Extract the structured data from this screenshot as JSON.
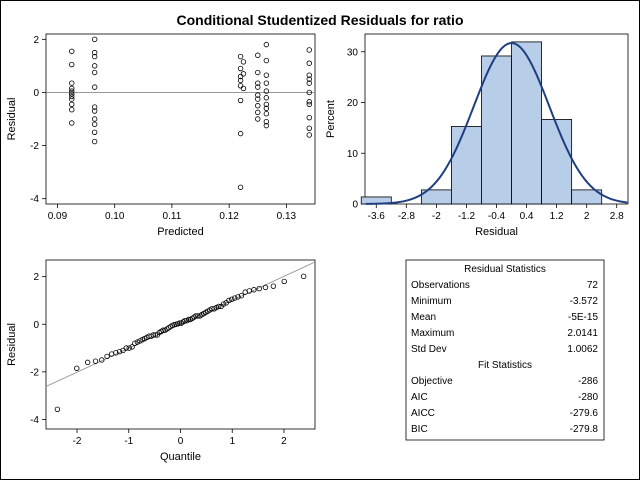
{
  "title": "Conditional Studentized Residuals for ratio",
  "colors": {
    "bar_fill": "#b7cde8",
    "curve": "#1f3f80",
    "reference_line": "#8a8a8a"
  },
  "chart_data": [
    {
      "type": "scatter",
      "panel": "top-left",
      "xlabel": "Predicted",
      "ylabel": "Residual",
      "xlim": [
        0.088,
        0.135
      ],
      "ylim": [
        -4.2,
        2.2
      ],
      "xticks": [
        0.09,
        0.1,
        0.11,
        0.12,
        0.13
      ],
      "xtick_labels": [
        "0.09",
        "0.10",
        "0.11",
        "0.12",
        "0.13"
      ],
      "yticks": [
        -4,
        -2,
        0,
        2
      ],
      "ytick_labels": [
        "-4",
        "-2",
        "0",
        "2"
      ],
      "reference_line_y": 0,
      "points": [
        [
          0.0925,
          1.55
        ],
        [
          0.0925,
          1.05
        ],
        [
          0.0925,
          0.35
        ],
        [
          0.0925,
          0.15
        ],
        [
          0.0925,
          0.05
        ],
        [
          0.0925,
          -0.05
        ],
        [
          0.0925,
          -0.15
        ],
        [
          0.0925,
          -0.25
        ],
        [
          0.0925,
          -0.45
        ],
        [
          0.0925,
          -0.65
        ],
        [
          0.0925,
          -1.15
        ],
        [
          0.0965,
          2.0
        ],
        [
          0.0965,
          1.5
        ],
        [
          0.0965,
          1.35
        ],
        [
          0.0965,
          1.0
        ],
        [
          0.0965,
          0.75
        ],
        [
          0.0965,
          0.2
        ],
        [
          0.0965,
          -0.55
        ],
        [
          0.0965,
          -0.7
        ],
        [
          0.0965,
          -1.0
        ],
        [
          0.0965,
          -1.2
        ],
        [
          0.0965,
          -1.5
        ],
        [
          0.0965,
          -1.85
        ],
        [
          0.122,
          1.35
        ],
        [
          0.122,
          0.9
        ],
        [
          0.122,
          0.6
        ],
        [
          0.122,
          0.45
        ],
        [
          0.122,
          0.25
        ],
        [
          0.122,
          -0.3
        ],
        [
          0.122,
          -1.55
        ],
        [
          0.122,
          -3.57
        ],
        [
          0.1225,
          1.15
        ],
        [
          0.1225,
          0.7
        ],
        [
          0.1225,
          0.15
        ],
        [
          0.125,
          1.4
        ],
        [
          0.125,
          0.75
        ],
        [
          0.125,
          0.35
        ],
        [
          0.125,
          0.2
        ],
        [
          0.125,
          -0.1
        ],
        [
          0.125,
          -0.25
        ],
        [
          0.125,
          -0.5
        ],
        [
          0.125,
          -0.75
        ],
        [
          0.125,
          -1.0
        ],
        [
          0.1265,
          1.8
        ],
        [
          0.1265,
          1.2
        ],
        [
          0.1265,
          0.65
        ],
        [
          0.1265,
          0.35
        ],
        [
          0.1265,
          0.05
        ],
        [
          0.1265,
          -0.2
        ],
        [
          0.1265,
          -0.45
        ],
        [
          0.1265,
          -0.6
        ],
        [
          0.1265,
          -0.8
        ],
        [
          0.1265,
          -1.1
        ],
        [
          0.1265,
          -1.25
        ],
        [
          0.134,
          1.6
        ],
        [
          0.134,
          1.1
        ],
        [
          0.134,
          0.65
        ],
        [
          0.134,
          0.5
        ],
        [
          0.134,
          0.35
        ],
        [
          0.134,
          0.0
        ],
        [
          0.134,
          -0.35
        ],
        [
          0.134,
          -0.45
        ],
        [
          0.134,
          -0.95
        ],
        [
          0.134,
          -1.35
        ],
        [
          0.134,
          -1.6
        ]
      ]
    },
    {
      "type": "bar",
      "panel": "top-right",
      "xlabel": "Residual",
      "ylabel": "Percent",
      "xlim": [
        -3.9,
        3.1
      ],
      "ylim": [
        0,
        33.5
      ],
      "xticks": [
        -3.6,
        -2.8,
        -2.0,
        -1.2,
        -0.4,
        0.4,
        1.2,
        2.0,
        2.8
      ],
      "xtick_labels": [
        "-3.6",
        "-2.8",
        "-2",
        "-1.2",
        "-0.4",
        "0.4",
        "1.2",
        "2",
        "2.8"
      ],
      "yticks": [
        0,
        10,
        20,
        30
      ],
      "ytick_labels": [
        "0",
        "10",
        "20",
        "30"
      ],
      "bin_width": 0.8,
      "bin_centers": [
        -3.6,
        -2.8,
        -2.0,
        -1.2,
        -0.4,
        0.4,
        1.2,
        2.0,
        2.8
      ],
      "values": [
        1.39,
        0,
        2.78,
        15.28,
        29.17,
        31.94,
        16.67,
        2.78,
        0
      ],
      "normal_curve": {
        "mean": 0,
        "sd": 1.0062,
        "scale_percent_per_bin": 80
      }
    },
    {
      "type": "scatter",
      "panel": "bottom-left",
      "xlabel": "Quantile",
      "ylabel": "Residual",
      "xlim": [
        -2.6,
        2.6
      ],
      "ylim": [
        -4.4,
        2.7
      ],
      "xticks": [
        -2,
        -1,
        0,
        1,
        2
      ],
      "xtick_labels": [
        "-2",
        "-1",
        "0",
        "1",
        "2"
      ],
      "yticks": [
        -4,
        -2,
        0,
        2
      ],
      "ytick_labels": [
        "-4",
        "-2",
        "0",
        "2"
      ],
      "reference_line": {
        "intercept": 0,
        "slope": 1.0062
      },
      "n_points": 72,
      "sorted_residuals": [
        -3.572,
        -1.85,
        -1.6,
        -1.55,
        -1.5,
        -1.35,
        -1.25,
        -1.2,
        -1.15,
        -1.1,
        -1.0,
        -1.0,
        -0.95,
        -0.8,
        -0.75,
        -0.7,
        -0.65,
        -0.6,
        -0.55,
        -0.5,
        -0.5,
        -0.45,
        -0.45,
        -0.45,
        -0.35,
        -0.3,
        -0.25,
        -0.25,
        -0.2,
        -0.15,
        -0.1,
        -0.05,
        -0.02,
        0.0,
        0.02,
        0.05,
        0.05,
        0.1,
        0.15,
        0.15,
        0.2,
        0.2,
        0.25,
        0.3,
        0.35,
        0.35,
        0.35,
        0.4,
        0.45,
        0.5,
        0.55,
        0.6,
        0.65,
        0.65,
        0.7,
        0.75,
        0.75,
        0.85,
        0.9,
        1.0,
        1.05,
        1.1,
        1.15,
        1.2,
        1.35,
        1.4,
        1.45,
        1.5,
        1.55,
        1.6,
        1.8,
        2.0141
      ]
    }
  ],
  "stats_table": {
    "residual_header": "Residual Statistics",
    "residual_rows": [
      {
        "label": "Observations",
        "value": "72"
      },
      {
        "label": "Minimum",
        "value": "-3.572"
      },
      {
        "label": "Mean",
        "value": "-5E-15"
      },
      {
        "label": "Maximum",
        "value": "2.0141"
      },
      {
        "label": "Std Dev",
        "value": "1.0062"
      }
    ],
    "fit_header": "Fit Statistics",
    "fit_rows": [
      {
        "label": "Objective",
        "value": "-286"
      },
      {
        "label": "AIC",
        "value": "-280"
      },
      {
        "label": "AICC",
        "value": "-279.6"
      },
      {
        "label": "BIC",
        "value": "-279.8"
      }
    ]
  }
}
